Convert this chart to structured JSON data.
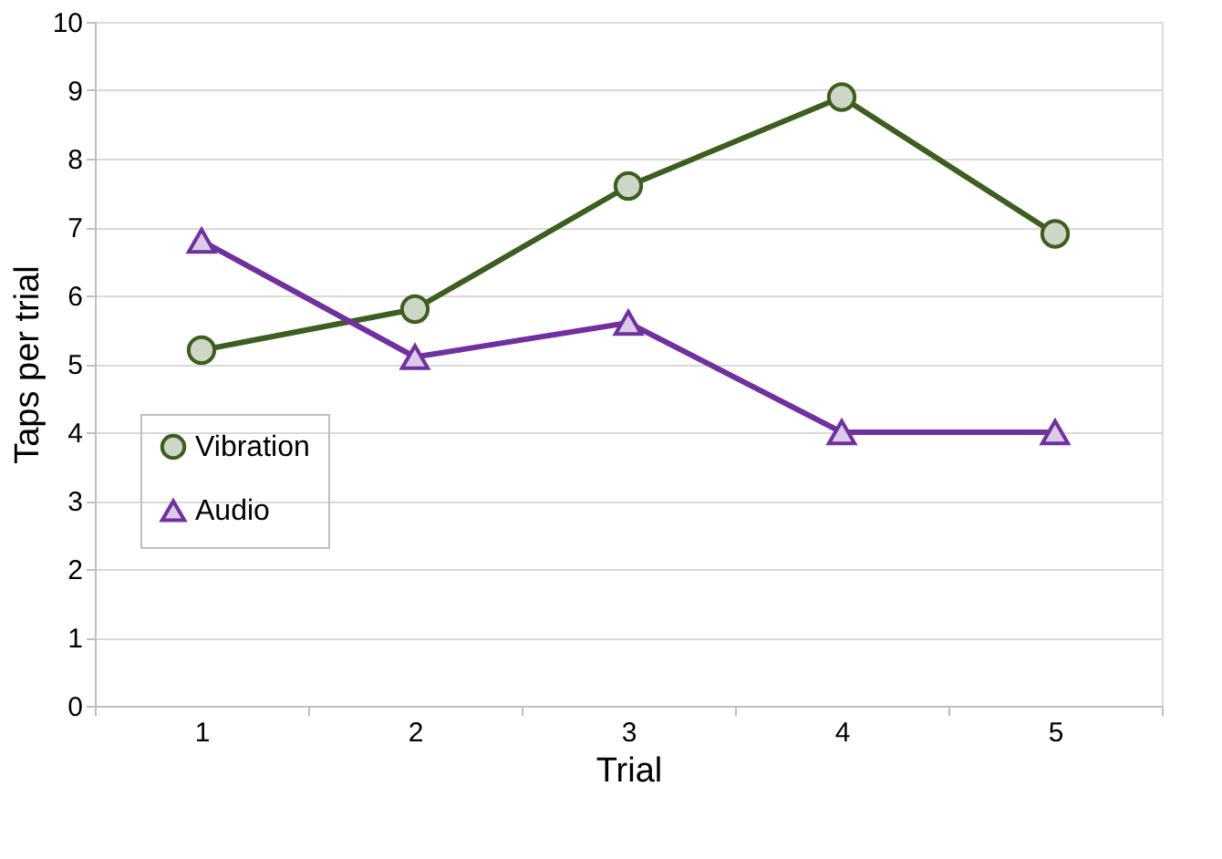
{
  "chart_data": {
    "type": "line",
    "xlabel": "Trial",
    "ylabel": "Taps per trial",
    "categories": [
      "1",
      "2",
      "3",
      "4",
      "5"
    ],
    "series": [
      {
        "name": "Vibration",
        "color": "#3d5e1f",
        "marker": "circle",
        "values": [
          5.2,
          5.8,
          7.6,
          8.9,
          6.9
        ]
      },
      {
        "name": "Audio",
        "color": "#7030a0",
        "marker": "triangle",
        "values": [
          6.8,
          5.1,
          5.6,
          4.0,
          4.0
        ]
      }
    ],
    "ylim": [
      0,
      10
    ],
    "yticks": [
      0,
      1,
      2,
      3,
      4,
      5,
      6,
      7,
      8,
      9,
      10
    ],
    "grid": "y",
    "legend": "left",
    "line_style": "solid"
  }
}
